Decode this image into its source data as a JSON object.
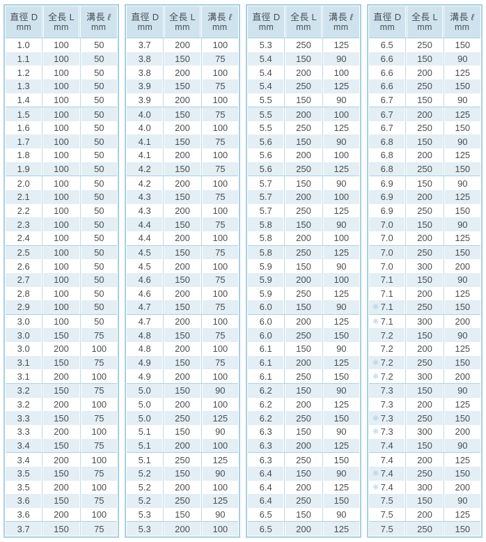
{
  "header": {
    "columns": [
      "直徑 D",
      "全長 L",
      "溝長 ℓ"
    ],
    "unit": "mm"
  },
  "mark_symbol": "※",
  "colors": {
    "outer_border": "#a7cfe2",
    "header_bg": "#cfe3ee",
    "stripe_bg": "#e3eef5",
    "inner_line": "#bedae8",
    "group_line": "#aed3e4",
    "text": "#4a4e51",
    "mark": "#a3cbde"
  },
  "tables": [
    {
      "marked": [],
      "rows": [
        [
          "1.0",
          "100",
          "50"
        ],
        [
          "1.1",
          "100",
          "50"
        ],
        [
          "1.2",
          "100",
          "50"
        ],
        [
          "1.3",
          "100",
          "50"
        ],
        [
          "1.4",
          "100",
          "50"
        ],
        [
          "1.5",
          "100",
          "50"
        ],
        [
          "1.6",
          "100",
          "50"
        ],
        [
          "1.7",
          "100",
          "50"
        ],
        [
          "1.8",
          "100",
          "50"
        ],
        [
          "1.9",
          "100",
          "50"
        ],
        [
          "2.0",
          "100",
          "50"
        ],
        [
          "2.1",
          "100",
          "50"
        ],
        [
          "2.2",
          "100",
          "50"
        ],
        [
          "2.3",
          "100",
          "50"
        ],
        [
          "2.4",
          "100",
          "50"
        ],
        [
          "2.5",
          "100",
          "50"
        ],
        [
          "2.6",
          "100",
          "50"
        ],
        [
          "2.7",
          "100",
          "50"
        ],
        [
          "2.8",
          "100",
          "50"
        ],
        [
          "2.9",
          "100",
          "50"
        ],
        [
          "3.0",
          "100",
          "50"
        ],
        [
          "3.0",
          "150",
          "75"
        ],
        [
          "3.0",
          "200",
          "100"
        ],
        [
          "3.1",
          "150",
          "75"
        ],
        [
          "3.1",
          "200",
          "100"
        ],
        [
          "3.2",
          "150",
          "75"
        ],
        [
          "3.2",
          "200",
          "100"
        ],
        [
          "3.3",
          "150",
          "75"
        ],
        [
          "3.3",
          "200",
          "100"
        ],
        [
          "3.4",
          "150",
          "75"
        ],
        [
          "3.4",
          "200",
          "100"
        ],
        [
          "3.5",
          "150",
          "75"
        ],
        [
          "3.5",
          "200",
          "100"
        ],
        [
          "3.6",
          "150",
          "75"
        ],
        [
          "3.6",
          "200",
          "100"
        ],
        [
          "3.7",
          "150",
          "75"
        ]
      ]
    },
    {
      "marked": [],
      "rows": [
        [
          "3.7",
          "200",
          "100"
        ],
        [
          "3.8",
          "150",
          "75"
        ],
        [
          "3.8",
          "200",
          "100"
        ],
        [
          "3.9",
          "150",
          "75"
        ],
        [
          "3.9",
          "200",
          "100"
        ],
        [
          "4.0",
          "150",
          "75"
        ],
        [
          "4.0",
          "200",
          "100"
        ],
        [
          "4.1",
          "150",
          "75"
        ],
        [
          "4.1",
          "200",
          "100"
        ],
        [
          "4.2",
          "150",
          "75"
        ],
        [
          "4.2",
          "200",
          "100"
        ],
        [
          "4.3",
          "150",
          "75"
        ],
        [
          "4.3",
          "200",
          "100"
        ],
        [
          "4.4",
          "150",
          "75"
        ],
        [
          "4.4",
          "200",
          "100"
        ],
        [
          "4.5",
          "150",
          "75"
        ],
        [
          "4.5",
          "200",
          "100"
        ],
        [
          "4.6",
          "150",
          "75"
        ],
        [
          "4.6",
          "200",
          "100"
        ],
        [
          "4.7",
          "150",
          "75"
        ],
        [
          "4.7",
          "200",
          "100"
        ],
        [
          "4.8",
          "150",
          "75"
        ],
        [
          "4.8",
          "200",
          "100"
        ],
        [
          "4.9",
          "150",
          "75"
        ],
        [
          "4.9",
          "200",
          "100"
        ],
        [
          "5.0",
          "150",
          "90"
        ],
        [
          "5.0",
          "200",
          "100"
        ],
        [
          "5.0",
          "250",
          "125"
        ],
        [
          "5.1",
          "150",
          "90"
        ],
        [
          "5.1",
          "200",
          "100"
        ],
        [
          "5.1",
          "250",
          "125"
        ],
        [
          "5.2",
          "150",
          "90"
        ],
        [
          "5.2",
          "200",
          "100"
        ],
        [
          "5.2",
          "250",
          "125"
        ],
        [
          "5.3",
          "150",
          "90"
        ],
        [
          "5.3",
          "200",
          "100"
        ]
      ]
    },
    {
      "marked": [],
      "rows": [
        [
          "5.3",
          "250",
          "125"
        ],
        [
          "5.4",
          "150",
          "90"
        ],
        [
          "5.4",
          "200",
          "100"
        ],
        [
          "5.4",
          "250",
          "125"
        ],
        [
          "5.5",
          "150",
          "90"
        ],
        [
          "5.5",
          "200",
          "100"
        ],
        [
          "5.5",
          "250",
          "125"
        ],
        [
          "5.6",
          "150",
          "90"
        ],
        [
          "5.6",
          "200",
          "100"
        ],
        [
          "5.6",
          "250",
          "125"
        ],
        [
          "5.7",
          "150",
          "90"
        ],
        [
          "5.7",
          "200",
          "100"
        ],
        [
          "5.7",
          "250",
          "125"
        ],
        [
          "5.8",
          "150",
          "90"
        ],
        [
          "5.8",
          "200",
          "100"
        ],
        [
          "5.8",
          "250",
          "125"
        ],
        [
          "5.9",
          "150",
          "90"
        ],
        [
          "5.9",
          "200",
          "100"
        ],
        [
          "5.9",
          "250",
          "125"
        ],
        [
          "6.0",
          "150",
          "90"
        ],
        [
          "6.0",
          "200",
          "125"
        ],
        [
          "6.0",
          "250",
          "150"
        ],
        [
          "6.1",
          "150",
          "90"
        ],
        [
          "6.1",
          "200",
          "125"
        ],
        [
          "6.1",
          "250",
          "150"
        ],
        [
          "6.2",
          "150",
          "90"
        ],
        [
          "6.2",
          "200",
          "125"
        ],
        [
          "6.2",
          "250",
          "150"
        ],
        [
          "6.3",
          "150",
          "90"
        ],
        [
          "6.3",
          "200",
          "125"
        ],
        [
          "6.3",
          "250",
          "150"
        ],
        [
          "6.4",
          "150",
          "90"
        ],
        [
          "6.4",
          "200",
          "125"
        ],
        [
          "6.4",
          "250",
          "150"
        ],
        [
          "6.5",
          "150",
          "90"
        ],
        [
          "6.5",
          "200",
          "125"
        ]
      ]
    },
    {
      "marked": [
        19,
        20,
        23,
        24,
        27,
        28,
        31,
        32
      ],
      "rows": [
        [
          "6.5",
          "250",
          "150"
        ],
        [
          "6.6",
          "150",
          "90"
        ],
        [
          "6.6",
          "200",
          "125"
        ],
        [
          "6.6",
          "250",
          "150"
        ],
        [
          "6.7",
          "150",
          "90"
        ],
        [
          "6.7",
          "200",
          "125"
        ],
        [
          "6.7",
          "250",
          "150"
        ],
        [
          "6.8",
          "150",
          "90"
        ],
        [
          "6.8",
          "200",
          "125"
        ],
        [
          "6.8",
          "250",
          "150"
        ],
        [
          "6.9",
          "150",
          "90"
        ],
        [
          "6.9",
          "200",
          "125"
        ],
        [
          "6.9",
          "250",
          "150"
        ],
        [
          "7.0",
          "150",
          "90"
        ],
        [
          "7.0",
          "200",
          "125"
        ],
        [
          "7.0",
          "250",
          "150"
        ],
        [
          "7.0",
          "300",
          "200"
        ],
        [
          "7.1",
          "150",
          "90"
        ],
        [
          "7.1",
          "200",
          "125"
        ],
        [
          "7.1",
          "250",
          "150"
        ],
        [
          "7.1",
          "300",
          "200"
        ],
        [
          "7.2",
          "150",
          "90"
        ],
        [
          "7.2",
          "200",
          "125"
        ],
        [
          "7.2",
          "250",
          "150"
        ],
        [
          "7.2",
          "300",
          "200"
        ],
        [
          "7.3",
          "150",
          "90"
        ],
        [
          "7.3",
          "200",
          "125"
        ],
        [
          "7.3",
          "250",
          "150"
        ],
        [
          "7.3",
          "300",
          "200"
        ],
        [
          "7.4",
          "150",
          "90"
        ],
        [
          "7.4",
          "200",
          "125"
        ],
        [
          "7.4",
          "250",
          "150"
        ],
        [
          "7.4",
          "300",
          "200"
        ],
        [
          "7.5",
          "150",
          "90"
        ],
        [
          "7.5",
          "200",
          "125"
        ],
        [
          "7.5",
          "250",
          "150"
        ]
      ]
    }
  ]
}
